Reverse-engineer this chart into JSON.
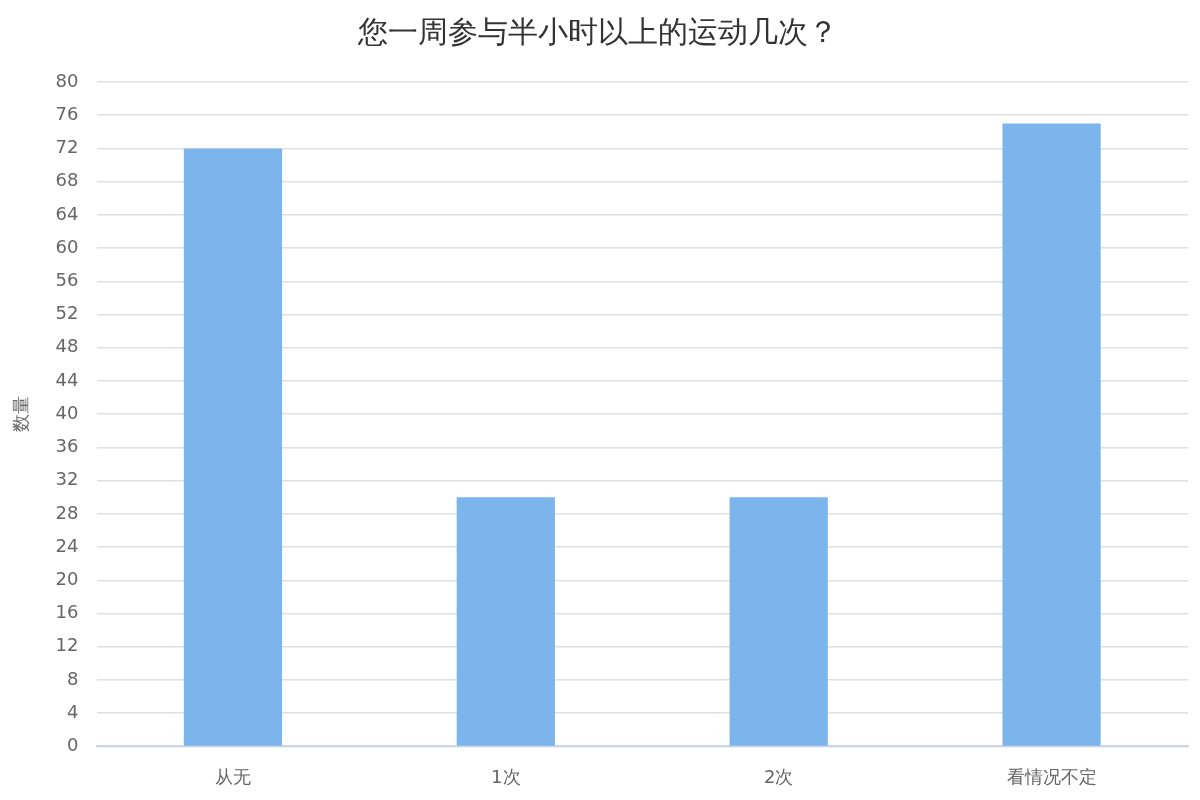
{
  "chart_data": {
    "type": "bar",
    "title": "您一周参与半小时以上的运动几次？",
    "ylabel": "数量",
    "categories": [
      "从无",
      "1次",
      "2次",
      "看情况不定"
    ],
    "values": [
      72,
      30,
      30,
      75
    ],
    "color": "#7cb5ec",
    "ylim": [
      0,
      80
    ],
    "yticks": [
      0,
      4,
      8,
      12,
      16,
      20,
      24,
      28,
      32,
      36,
      40,
      44,
      48,
      52,
      56,
      60,
      64,
      68,
      72,
      76,
      80
    ],
    "grid": "y",
    "legend": false
  }
}
